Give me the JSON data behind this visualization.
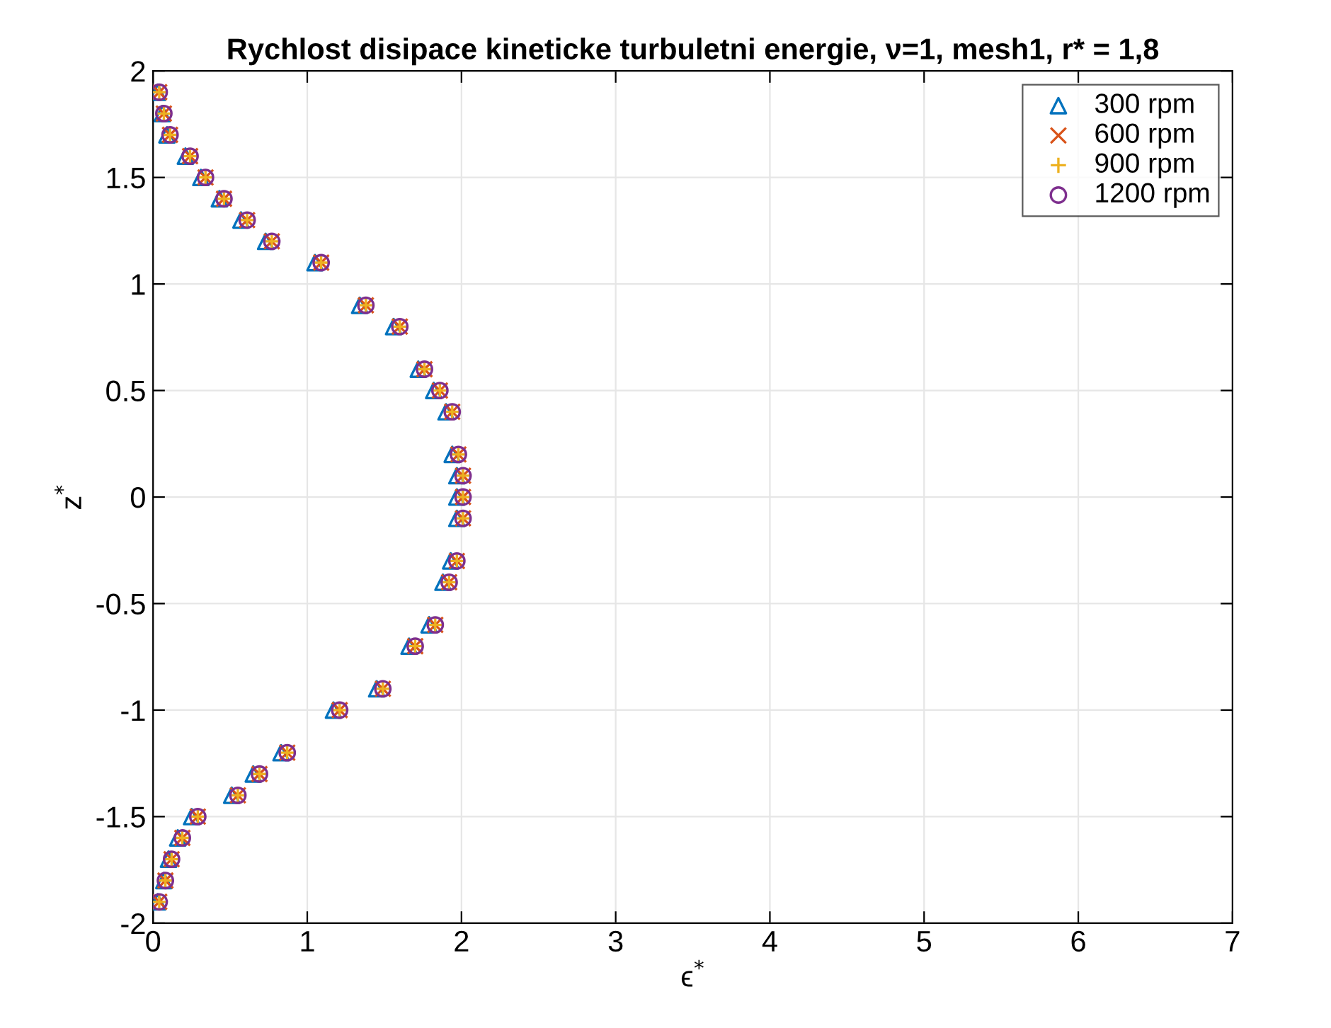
{
  "chart_data": {
    "type": "scatter",
    "title": "Rychlost disipace kineticke turbuletni energie, ν=1, mesh1, r* = 1,8",
    "xlabel": "ϵ$^{*}$",
    "ylabel": "z$^{*}$",
    "xlim": [
      0,
      7
    ],
    "xticks": [
      0,
      1,
      2,
      3,
      4,
      5,
      6,
      7
    ],
    "ylim": [
      -2,
      2
    ],
    "yticks": [
      -2,
      -1.5,
      -1,
      -0.5,
      0,
      0.5,
      1,
      1.5,
      2
    ],
    "grid": true,
    "legend": "top right",
    "series": [
      {
        "name": "300 rpm",
        "color": "#0072bd",
        "marker": "triangle",
        "x": [
          0.03,
          0.06,
          0.09,
          0.21,
          0.31,
          0.43,
          0.57,
          0.73,
          1.05,
          1.34,
          1.56,
          1.72,
          1.82,
          1.9,
          1.94,
          1.97,
          1.97,
          1.97,
          1.93,
          1.88,
          1.79,
          1.66,
          1.45,
          1.17,
          0.83,
          0.65,
          0.51,
          0.25,
          0.16,
          0.1,
          0.07,
          0.03
        ],
        "values": [
          1.9,
          1.8,
          1.7,
          1.6,
          1.5,
          1.4,
          1.3,
          1.2,
          1.1,
          0.9,
          0.8,
          0.6,
          0.5,
          0.4,
          0.2,
          0.1,
          0,
          -0.1,
          -0.3,
          -0.4,
          -0.6,
          -0.7,
          -0.9,
          -1.0,
          -1.2,
          -1.3,
          -1.4,
          -1.5,
          -1.6,
          -1.7,
          -1.8,
          -1.9
        ]
      },
      {
        "name": "600 rpm",
        "color": "#d95319",
        "marker": "cross",
        "x": [
          0.04,
          0.07,
          0.11,
          0.24,
          0.34,
          0.46,
          0.61,
          0.77,
          1.09,
          1.38,
          1.6,
          1.76,
          1.86,
          1.94,
          1.98,
          2.01,
          2.01,
          2.01,
          1.97,
          1.92,
          1.83,
          1.7,
          1.49,
          1.21,
          0.87,
          0.69,
          0.55,
          0.29,
          0.19,
          0.12,
          0.08,
          0.04
        ],
        "values": [
          1.9,
          1.8,
          1.7,
          1.6,
          1.5,
          1.4,
          1.3,
          1.2,
          1.1,
          0.9,
          0.8,
          0.6,
          0.5,
          0.4,
          0.2,
          0.1,
          0,
          -0.1,
          -0.3,
          -0.4,
          -0.6,
          -0.7,
          -0.9,
          -1.0,
          -1.2,
          -1.3,
          -1.4,
          -1.5,
          -1.6,
          -1.7,
          -1.8,
          -1.9
        ]
      },
      {
        "name": "900 rpm",
        "color": "#edb120",
        "marker": "plus",
        "x": [
          0.04,
          0.07,
          0.11,
          0.24,
          0.34,
          0.46,
          0.61,
          0.77,
          1.09,
          1.38,
          1.6,
          1.76,
          1.86,
          1.94,
          1.98,
          2.01,
          2.01,
          2.01,
          1.97,
          1.92,
          1.83,
          1.7,
          1.49,
          1.21,
          0.87,
          0.69,
          0.55,
          0.29,
          0.19,
          0.12,
          0.08,
          0.04
        ],
        "values": [
          1.9,
          1.8,
          1.7,
          1.6,
          1.5,
          1.4,
          1.3,
          1.2,
          1.1,
          0.9,
          0.8,
          0.6,
          0.5,
          0.4,
          0.2,
          0.1,
          0,
          -0.1,
          -0.3,
          -0.4,
          -0.6,
          -0.7,
          -0.9,
          -1.0,
          -1.2,
          -1.3,
          -1.4,
          -1.5,
          -1.6,
          -1.7,
          -1.8,
          -1.9
        ]
      },
      {
        "name": "1200 rpm",
        "color": "#7e2f8e",
        "marker": "circle",
        "x": [
          0.04,
          0.07,
          0.11,
          0.24,
          0.34,
          0.46,
          0.61,
          0.77,
          1.09,
          1.38,
          1.6,
          1.76,
          1.86,
          1.94,
          1.98,
          2.01,
          2.01,
          2.01,
          1.97,
          1.92,
          1.83,
          1.7,
          1.49,
          1.21,
          0.87,
          0.69,
          0.55,
          0.29,
          0.19,
          0.12,
          0.08,
          0.04
        ],
        "values": [
          1.9,
          1.8,
          1.7,
          1.6,
          1.5,
          1.4,
          1.3,
          1.2,
          1.1,
          0.9,
          0.8,
          0.6,
          0.5,
          0.4,
          0.2,
          0.1,
          0,
          -0.1,
          -0.3,
          -0.4,
          -0.6,
          -0.7,
          -0.9,
          -1.0,
          -1.2,
          -1.3,
          -1.4,
          -1.5,
          -1.6,
          -1.7,
          -1.8,
          -1.9
        ]
      }
    ]
  }
}
